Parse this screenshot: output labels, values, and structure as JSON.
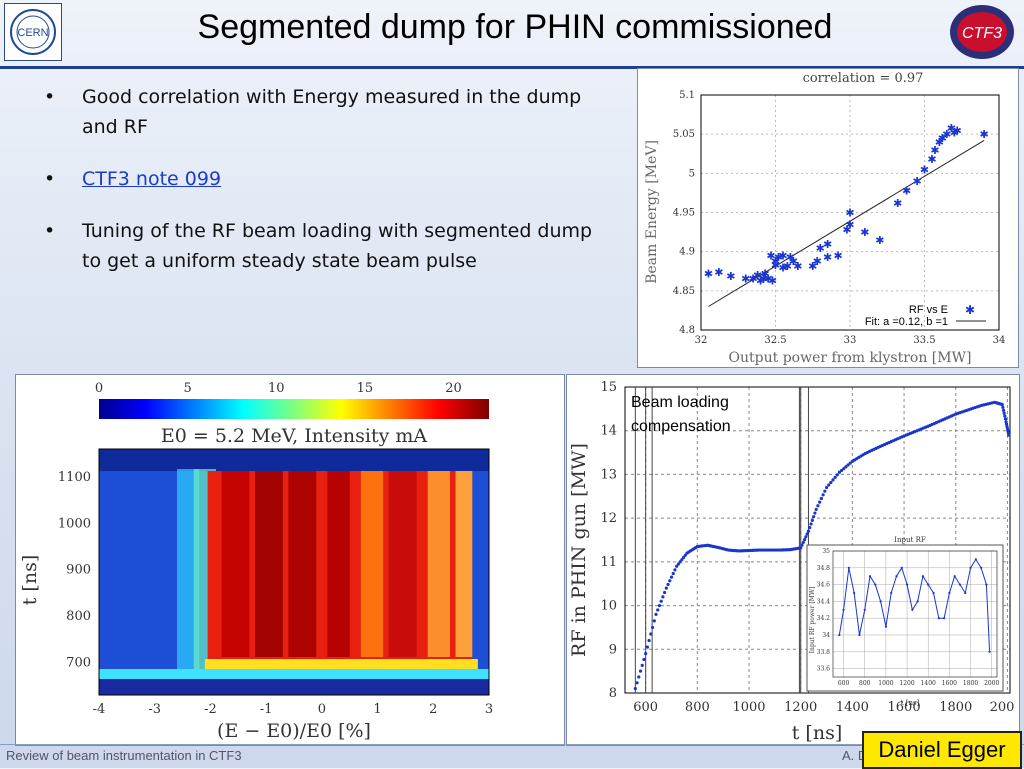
{
  "slide": {
    "title": "Segmented dump for PHIN commissioned",
    "bullets": [
      {
        "text": "Good correlation with Energy measured in the dump and RF"
      },
      {
        "text": "CTF3 note 099",
        "link": true
      },
      {
        "text": "Tuning of the RF beam loading with segmented dump to get a uniform steady state beam pulse"
      }
    ],
    "bullet_glyph": "•",
    "footer_left": "Review of beam instrumentation in CTF3",
    "footer_right": "A. D",
    "author_badge": "Daniel Egger",
    "logo_left_text": "CERN",
    "logo_right_text": "CTF3",
    "beam_label_1": "Beam loading",
    "beam_label_2": "compensation"
  },
  "chart_data": [
    {
      "type": "scatter",
      "title": "correlation = 0.97",
      "xlabel": "Output power from klystron [MW]",
      "ylabel": "Beam Energy [MeV]",
      "xlim": [
        32,
        34
      ],
      "ylim": [
        4.8,
        5.1
      ],
      "xticks": [
        "32",
        "32.5",
        "33",
        "33.5",
        "34"
      ],
      "yticks": [
        "4.8",
        "4.85",
        "4.9",
        "4.95",
        "5",
        "5.05",
        "5.1"
      ],
      "legend": [
        "RF vs E",
        "Fit: a =0.12, b =1"
      ],
      "series": [
        {
          "name": "RF vs E",
          "x": [
            32.05,
            32.12,
            32.2,
            32.3,
            32.35,
            32.38,
            32.4,
            32.42,
            32.43,
            32.45,
            32.47,
            32.48,
            32.5,
            32.5,
            32.52,
            32.55,
            32.55,
            32.58,
            32.6,
            32.62,
            32.65,
            32.75,
            32.78,
            32.8,
            32.85,
            32.85,
            32.92,
            32.98,
            33.0,
            33.0,
            33.1,
            33.2,
            33.32,
            33.38,
            33.45,
            33.5,
            33.55,
            33.57,
            33.6,
            33.62,
            33.65,
            33.68,
            33.7,
            33.72,
            33.9
          ],
          "y": [
            4.872,
            4.874,
            4.869,
            4.866,
            4.866,
            4.87,
            4.863,
            4.866,
            4.872,
            4.866,
            4.895,
            4.863,
            4.883,
            4.888,
            4.893,
            4.88,
            4.895,
            4.882,
            4.893,
            4.888,
            4.882,
            4.882,
            4.888,
            4.905,
            4.893,
            4.91,
            4.895,
            4.928,
            4.935,
            4.95,
            4.925,
            4.915,
            4.962,
            4.978,
            4.99,
            5.005,
            5.018,
            5.03,
            5.04,
            5.045,
            5.05,
            5.058,
            5.052,
            5.055,
            5.05
          ]
        }
      ],
      "fit": {
        "x": [
          32.05,
          33.9
        ],
        "y": [
          4.83,
          5.042
        ]
      }
    },
    {
      "type": "heatmap",
      "title": "E0 = 5.2 MeV, Intensity mA",
      "xlabel": "(E − E0)/E0 [%]",
      "ylabel": "t [ns]",
      "xlim": [
        -4,
        3
      ],
      "ylim": [
        630,
        1160
      ],
      "xticks": [
        "-4",
        "-3",
        "-2",
        "-1",
        "0",
        "1",
        "2",
        "3"
      ],
      "yticks": [
        "700",
        "800",
        "900",
        "1000",
        "1100"
      ],
      "colorbar_ticks": [
        "0",
        "5",
        "10",
        "15",
        "20"
      ],
      "colorbar_range": [
        0,
        22
      ]
    },
    {
      "type": "line",
      "xlabel": "t [ns]",
      "ylabel": "RF in PHIN gun [MW]",
      "xlim": [
        520,
        2010
      ],
      "ylim": [
        8,
        15
      ],
      "xticks": [
        "600",
        "800",
        "1000",
        "1200",
        "1400",
        "1600",
        "1800",
        "200"
      ],
      "yticks": [
        "8",
        "9",
        "10",
        "11",
        "12",
        "13",
        "14",
        "15"
      ],
      "series": [
        {
          "x": [
            560,
            600,
            640,
            680,
            720,
            760,
            800,
            840,
            880,
            920,
            960,
            1000,
            1040,
            1080,
            1120,
            1160,
            1200,
            1230,
            1260,
            1300,
            1350,
            1400,
            1450,
            1500,
            1550,
            1600,
            1650,
            1700,
            1750,
            1800,
            1850,
            1900,
            1950,
            1980,
            1995,
            2005
          ],
          "y": [
            8.1,
            8.9,
            9.8,
            10.4,
            10.9,
            11.2,
            11.35,
            11.38,
            11.33,
            11.27,
            11.25,
            11.26,
            11.27,
            11.27,
            11.27,
            11.28,
            11.32,
            11.7,
            12.2,
            12.7,
            13.05,
            13.3,
            13.48,
            13.62,
            13.75,
            13.88,
            14.0,
            14.12,
            14.25,
            14.38,
            14.48,
            14.58,
            14.65,
            14.6,
            14.2,
            13.9
          ]
        }
      ],
      "vlines": [
        560,
        600,
        625,
        1195,
        1200,
        1230
      ]
    },
    {
      "type": "line",
      "title": "Input RF",
      "xlabel": "t [ns]",
      "ylabel": "Input RF power [MW]",
      "xlim": [
        500,
        2050
      ],
      "ylim": [
        33.5,
        35
      ],
      "xticks": [
        "600",
        "800",
        "1000",
        "1200",
        "1400",
        "1600",
        "1800",
        "2000"
      ],
      "yticks": [
        "33.6",
        "33.8",
        "34",
        "34.2",
        "34.4",
        "34.6",
        "34.8",
        "35"
      ],
      "series": [
        {
          "x": [
            560,
            600,
            650,
            700,
            750,
            800,
            850,
            900,
            950,
            1000,
            1050,
            1100,
            1150,
            1200,
            1250,
            1300,
            1350,
            1400,
            1450,
            1500,
            1550,
            1600,
            1650,
            1700,
            1750,
            1800,
            1850,
            1900,
            1950,
            1980
          ],
          "y": [
            34.0,
            34.3,
            34.8,
            34.5,
            34.0,
            34.3,
            34.7,
            34.6,
            34.4,
            34.1,
            34.5,
            34.7,
            34.8,
            34.6,
            34.3,
            34.4,
            34.7,
            34.6,
            34.5,
            34.2,
            34.2,
            34.5,
            34.7,
            34.6,
            34.5,
            34.8,
            34.9,
            34.8,
            34.6,
            33.8
          ]
        }
      ]
    }
  ]
}
